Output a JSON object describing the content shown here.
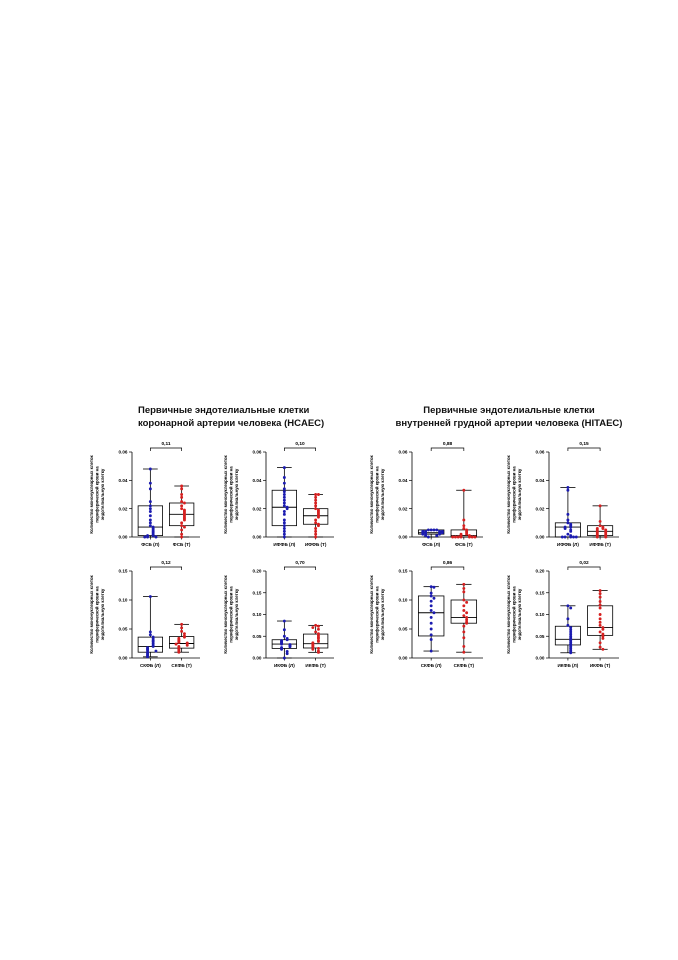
{
  "groups": [
    {
      "title_line1": "Первичные эндотелиальные клетки",
      "title_line2": "коронарной артерии человека (HCAEC)"
    },
    {
      "title_line1": "Первичные эндотелиальные клетки",
      "title_line2": "внутренней грудной артерии человека (HITAEC)"
    }
  ],
  "colors": {
    "left_group": "#1b1bb0",
    "right_group": "#d62020",
    "axis": "#000000"
  },
  "y_axis_label_line1": "Количество мононуклеарных клеток",
  "y_axis_label_line2": "периферической крови на",
  "y_axis_label_line3": "эндотелиальную клетку",
  "chart_data": [
    {
      "type": "box",
      "group": "HCAEC",
      "p_value": "0,11",
      "ylim": [
        0,
        0.06
      ],
      "yticks": [
        "0.00",
        "0.02",
        "0.04",
        "0.06"
      ],
      "categories": [
        "ФСБ (Л)",
        "ФСБ (Т)"
      ],
      "series": [
        {
          "box": {
            "min": 0.0,
            "q1": 0.001,
            "median": 0.007,
            "q3": 0.022,
            "max": 0.048
          },
          "points": [
            0.048,
            0.038,
            0.034,
            0.025,
            0.022,
            0.02,
            0.018,
            0.015,
            0.012,
            0.01,
            0.008,
            0.007,
            0.006,
            0.005,
            0.004,
            0.003,
            0.002,
            0.001,
            0.001,
            0.0,
            0.0,
            0.0
          ]
        },
        {
          "box": {
            "min": 0.0,
            "q1": 0.008,
            "median": 0.016,
            "q3": 0.024,
            "max": 0.036
          },
          "points": [
            0.036,
            0.034,
            0.03,
            0.028,
            0.025,
            0.024,
            0.022,
            0.02,
            0.019,
            0.018,
            0.017,
            0.016,
            0.015,
            0.014,
            0.013,
            0.012,
            0.01,
            0.008,
            0.007,
            0.005,
            0.002,
            0.0
          ]
        }
      ]
    },
    {
      "type": "box",
      "group": "HCAEC",
      "p_value": "0,10",
      "ylim": [
        0,
        0.06
      ],
      "yticks": [
        "0.00",
        "0.02",
        "0.04",
        "0.06"
      ],
      "categories": [
        "ИФФБ (Л)",
        "ИФФБ (Т)"
      ],
      "series": [
        {
          "box": {
            "min": 0.0,
            "q1": 0.008,
            "median": 0.021,
            "q3": 0.033,
            "max": 0.049
          },
          "points": [
            0.049,
            0.042,
            0.038,
            0.034,
            0.032,
            0.03,
            0.028,
            0.026,
            0.024,
            0.022,
            0.021,
            0.02,
            0.018,
            0.016,
            0.012,
            0.01,
            0.008,
            0.006,
            0.004,
            0.002,
            0.0
          ]
        },
        {
          "box": {
            "min": 0.0,
            "q1": 0.009,
            "median": 0.015,
            "q3": 0.02,
            "max": 0.03
          },
          "points": [
            0.03,
            0.03,
            0.028,
            0.026,
            0.024,
            0.022,
            0.02,
            0.019,
            0.018,
            0.017,
            0.016,
            0.015,
            0.014,
            0.012,
            0.01,
            0.009,
            0.008,
            0.006,
            0.004,
            0.002,
            0.0
          ]
        }
      ]
    },
    {
      "type": "box",
      "group": "HCAEC",
      "p_value": "0,12",
      "ylim": [
        0,
        0.15
      ],
      "yticks": [
        "0.00",
        "0.05",
        "0.10",
        "0.15"
      ],
      "categories": [
        "СКФБ (Л)",
        "СКФБ (Т)"
      ],
      "series": [
        {
          "box": {
            "min": 0.002,
            "q1": 0.01,
            "median": 0.02,
            "q3": 0.036,
            "max": 0.106
          },
          "points": [
            0.106,
            0.045,
            0.04,
            0.036,
            0.033,
            0.03,
            0.028,
            0.025,
            0.022,
            0.02,
            0.018,
            0.016,
            0.015,
            0.013,
            0.012,
            0.01,
            0.008,
            0.006,
            0.004,
            0.002
          ]
        },
        {
          "box": {
            "min": 0.01,
            "q1": 0.017,
            "median": 0.025,
            "q3": 0.037,
            "max": 0.058
          },
          "points": [
            0.058,
            0.052,
            0.046,
            0.042,
            0.038,
            0.036,
            0.034,
            0.032,
            0.03,
            0.028,
            0.027,
            0.026,
            0.025,
            0.024,
            0.022,
            0.02,
            0.018,
            0.016,
            0.014,
            0.012,
            0.01
          ]
        }
      ]
    },
    {
      "type": "box",
      "group": "HCAEC",
      "p_value": "0,70",
      "ylim": [
        0,
        0.2
      ],
      "yticks": [
        "0.00",
        "0.05",
        "0.10",
        "0.15",
        "0.20"
      ],
      "categories": [
        "ИКФБ (Л)",
        "ИКФБ (Т)"
      ],
      "series": [
        {
          "box": {
            "min": 0.0,
            "q1": 0.022,
            "median": 0.032,
            "q3": 0.042,
            "max": 0.085
          },
          "points": [
            0.085,
            0.065,
            0.05,
            0.045,
            0.042,
            0.04,
            0.038,
            0.036,
            0.034,
            0.032,
            0.031,
            0.03,
            0.028,
            0.026,
            0.024,
            0.022,
            0.02,
            0.015,
            0.01,
            0.0
          ]
        },
        {
          "box": {
            "min": 0.013,
            "q1": 0.023,
            "median": 0.033,
            "q3": 0.055,
            "max": 0.075
          },
          "points": [
            0.075,
            0.073,
            0.07,
            0.066,
            0.06,
            0.056,
            0.052,
            0.048,
            0.045,
            0.04,
            0.038,
            0.035,
            0.033,
            0.03,
            0.028,
            0.025,
            0.022,
            0.02,
            0.016,
            0.013
          ]
        }
      ]
    },
    {
      "type": "box",
      "group": "HITAEC",
      "p_value": "0,88",
      "ylim": [
        0,
        0.06
      ],
      "yticks": [
        "0.00",
        "0.02",
        "0.04",
        "0.06"
      ],
      "categories": [
        "ФСБ (Л)",
        "ФСБ (Т)"
      ],
      "series": [
        {
          "box": {
            "min": 0.0,
            "q1": 0.002,
            "median": 0.003,
            "q3": 0.005,
            "max": 0.005
          },
          "points": [
            0.005,
            0.005,
            0.005,
            0.005,
            0.004,
            0.004,
            0.004,
            0.004,
            0.003,
            0.003,
            0.003,
            0.003,
            0.002,
            0.002,
            0.002,
            0.001,
            0.001,
            0.0
          ]
        },
        {
          "box": {
            "min": 0.0,
            "q1": 0.0,
            "median": 0.001,
            "q3": 0.005,
            "max": 0.033
          },
          "points": [
            0.033,
            0.012,
            0.008,
            0.006,
            0.005,
            0.004,
            0.003,
            0.002,
            0.002,
            0.001,
            0.001,
            0.0,
            0.0,
            0.0,
            0.0,
            0.0,
            0.0,
            0.0
          ]
        }
      ]
    },
    {
      "type": "box",
      "group": "HITAEC",
      "p_value": "0,15",
      "ylim": [
        0,
        0.06
      ],
      "yticks": [
        "0.00",
        "0.02",
        "0.04",
        "0.06"
      ],
      "categories": [
        "ИФФБ (Л)",
        "ИФФБ (Т)"
      ],
      "series": [
        {
          "box": {
            "min": 0.0,
            "q1": 0.0,
            "median": 0.007,
            "q3": 0.01,
            "max": 0.035
          },
          "points": [
            0.035,
            0.033,
            0.016,
            0.012,
            0.01,
            0.009,
            0.008,
            0.007,
            0.007,
            0.006,
            0.005,
            0.004,
            0.002,
            0.001,
            0.0,
            0.0,
            0.0,
            0.0,
            0.0
          ]
        },
        {
          "box": {
            "min": 0.0,
            "q1": 0.001,
            "median": 0.004,
            "q3": 0.008,
            "max": 0.022
          },
          "points": [
            0.022,
            0.011,
            0.008,
            0.007,
            0.006,
            0.006,
            0.005,
            0.005,
            0.004,
            0.004,
            0.003,
            0.003,
            0.002,
            0.002,
            0.001,
            0.001,
            0.0,
            0.0
          ]
        }
      ]
    },
    {
      "type": "box",
      "group": "HITAEC",
      "p_value": "0,86",
      "ylim": [
        0,
        0.15
      ],
      "yticks": [
        "0.00",
        "0.05",
        "0.10",
        "0.15"
      ],
      "categories": [
        "СКФБ (Л)",
        "СКФБ (Т)"
      ],
      "series": [
        {
          "box": {
            "min": 0.012,
            "q1": 0.038,
            "median": 0.078,
            "q3": 0.107,
            "max": 0.123
          },
          "points": [
            0.123,
            0.122,
            0.112,
            0.107,
            0.103,
            0.098,
            0.09,
            0.082,
            0.078,
            0.07,
            0.06,
            0.05,
            0.04,
            0.032,
            0.012
          ]
        },
        {
          "box": {
            "min": 0.01,
            "q1": 0.06,
            "median": 0.07,
            "q3": 0.1,
            "max": 0.127
          },
          "points": [
            0.127,
            0.12,
            0.114,
            0.1,
            0.096,
            0.09,
            0.082,
            0.078,
            0.073,
            0.07,
            0.066,
            0.062,
            0.06,
            0.055,
            0.045,
            0.035,
            0.02,
            0.01
          ]
        }
      ]
    },
    {
      "type": "box",
      "group": "HITAEC",
      "p_value": "0,02",
      "ylim": [
        0,
        0.2
      ],
      "yticks": [
        "0.00",
        "0.05",
        "0.10",
        "0.15",
        "0.20"
      ],
      "categories": [
        "ИКФБ (Л)",
        "ИКФБ (Т)"
      ],
      "series": [
        {
          "box": {
            "min": 0.012,
            "q1": 0.03,
            "median": 0.043,
            "q3": 0.073,
            "max": 0.12
          },
          "points": [
            0.12,
            0.115,
            0.09,
            0.075,
            0.07,
            0.065,
            0.06,
            0.055,
            0.05,
            0.046,
            0.043,
            0.04,
            0.036,
            0.032,
            0.03,
            0.026,
            0.022,
            0.018,
            0.015,
            0.012
          ]
        },
        {
          "box": {
            "min": 0.02,
            "q1": 0.052,
            "median": 0.07,
            "q3": 0.12,
            "max": 0.155
          },
          "points": [
            0.155,
            0.148,
            0.14,
            0.13,
            0.122,
            0.115,
            0.1,
            0.09,
            0.082,
            0.075,
            0.07,
            0.066,
            0.06,
            0.055,
            0.05,
            0.045,
            0.035,
            0.025,
            0.02
          ]
        }
      ]
    }
  ]
}
